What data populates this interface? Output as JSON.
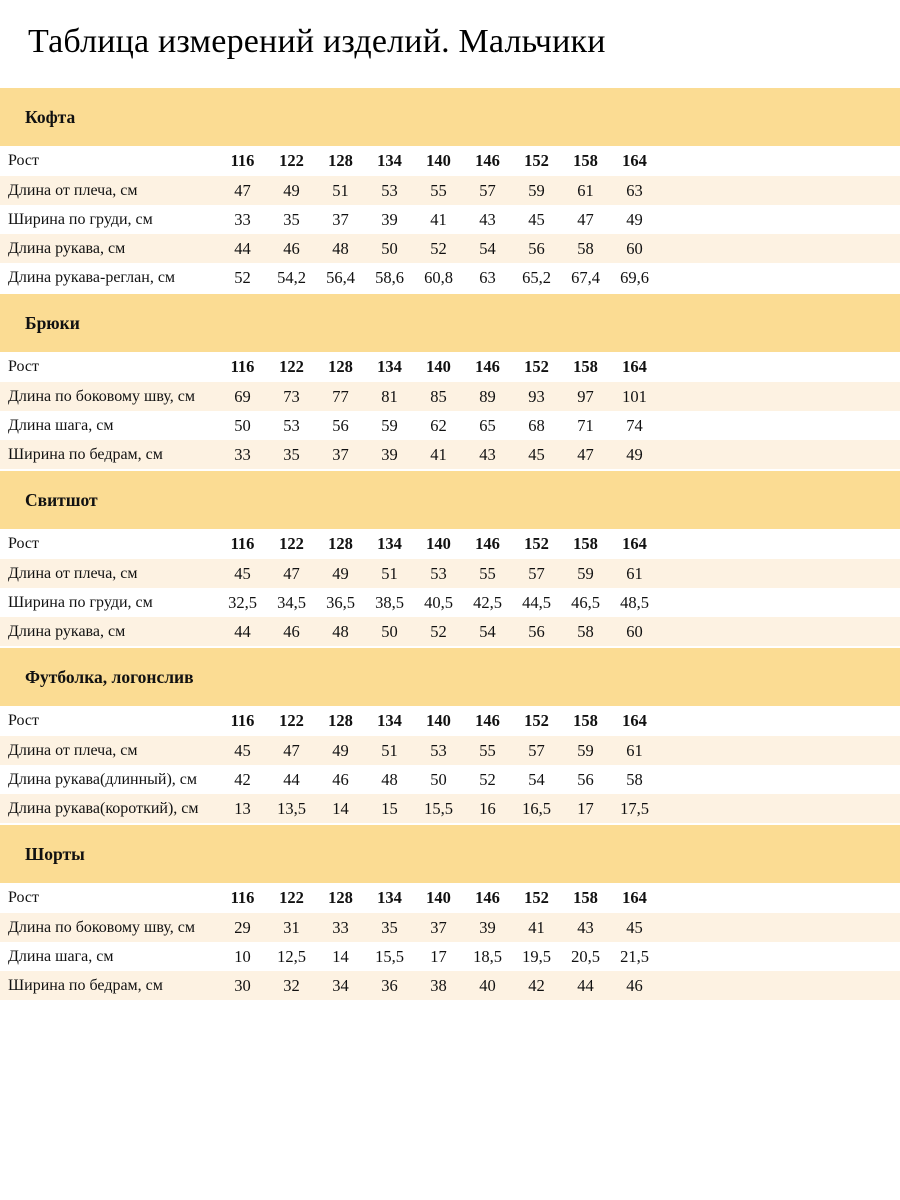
{
  "page": {
    "title": "Таблица измерений изделий. Мальчики"
  },
  "colors": {
    "band_yellow": "#FBDC93",
    "row_cream": "#FDF2E2",
    "row_white": "#FFFFFF",
    "text": "#111111"
  },
  "height_row_label": "Рост",
  "heights": [
    "116",
    "122",
    "128",
    "134",
    "140",
    "146",
    "152",
    "158",
    "164"
  ],
  "sections": [
    {
      "name": "Кофта",
      "rows": [
        {
          "label": "Длина от плеча, см",
          "values": [
            "47",
            "49",
            "51",
            "53",
            "55",
            "57",
            "59",
            "61",
            "63"
          ]
        },
        {
          "label": "Ширина по груди, см",
          "values": [
            "33",
            "35",
            "37",
            "39",
            "41",
            "43",
            "45",
            "47",
            "49"
          ]
        },
        {
          "label": "Длина рукава, см",
          "values": [
            "44",
            "46",
            "48",
            "50",
            "52",
            "54",
            "56",
            "58",
            "60"
          ]
        },
        {
          "label": "Длина рукава-реглан, см",
          "values": [
            "52",
            "54,2",
            "56,4",
            "58,6",
            "60,8",
            "63",
            "65,2",
            "67,4",
            "69,6"
          ]
        }
      ]
    },
    {
      "name": "Брюки",
      "rows": [
        {
          "label": "Длина по боковому шву, см",
          "values": [
            "69",
            "73",
            "77",
            "81",
            "85",
            "89",
            "93",
            "97",
            "101"
          ]
        },
        {
          "label": "Длина шага, см",
          "values": [
            "50",
            "53",
            "56",
            "59",
            "62",
            "65",
            "68",
            "71",
            "74"
          ]
        },
        {
          "label": "Ширина по бедрам, см",
          "values": [
            "33",
            "35",
            "37",
            "39",
            "41",
            "43",
            "45",
            "47",
            "49"
          ]
        }
      ]
    },
    {
      "name": "Свитшот",
      "rows": [
        {
          "label": "Длина от плеча, см",
          "values": [
            "45",
            "47",
            "49",
            "51",
            "53",
            "55",
            "57",
            "59",
            "61"
          ]
        },
        {
          "label": "Ширина по груди, см",
          "values": [
            "32,5",
            "34,5",
            "36,5",
            "38,5",
            "40,5",
            "42,5",
            "44,5",
            "46,5",
            "48,5"
          ]
        },
        {
          "label": "Длина рукава, см",
          "values": [
            "44",
            "46",
            "48",
            "50",
            "52",
            "54",
            "56",
            "58",
            "60"
          ]
        }
      ]
    },
    {
      "name": "Футболка, логонслив",
      "rows": [
        {
          "label": "Длина от плеча, см",
          "values": [
            "45",
            "47",
            "49",
            "51",
            "53",
            "55",
            "57",
            "59",
            "61"
          ]
        },
        {
          "label": "Длина рукава(длинный), см",
          "values": [
            "42",
            "44",
            "46",
            "48",
            "50",
            "52",
            "54",
            "56",
            "58"
          ]
        },
        {
          "label": "Длина рукава(короткий), см",
          "values": [
            "13",
            "13,5",
            "14",
            "15",
            "15,5",
            "16",
            "16,5",
            "17",
            "17,5"
          ]
        }
      ]
    },
    {
      "name": "Шорты",
      "rows": [
        {
          "label": "Длина по боковому шву, см",
          "values": [
            "29",
            "31",
            "33",
            "35",
            "37",
            "39",
            "41",
            "43",
            "45"
          ]
        },
        {
          "label": "Длина шага, см",
          "values": [
            "10",
            "12,5",
            "14",
            "15,5",
            "17",
            "18,5",
            "19,5",
            "20,5",
            "21,5"
          ]
        },
        {
          "label": "Ширина по бедрам, см",
          "values": [
            "30",
            "32",
            "34",
            "36",
            "38",
            "40",
            "42",
            "44",
            "46"
          ]
        }
      ]
    }
  ]
}
